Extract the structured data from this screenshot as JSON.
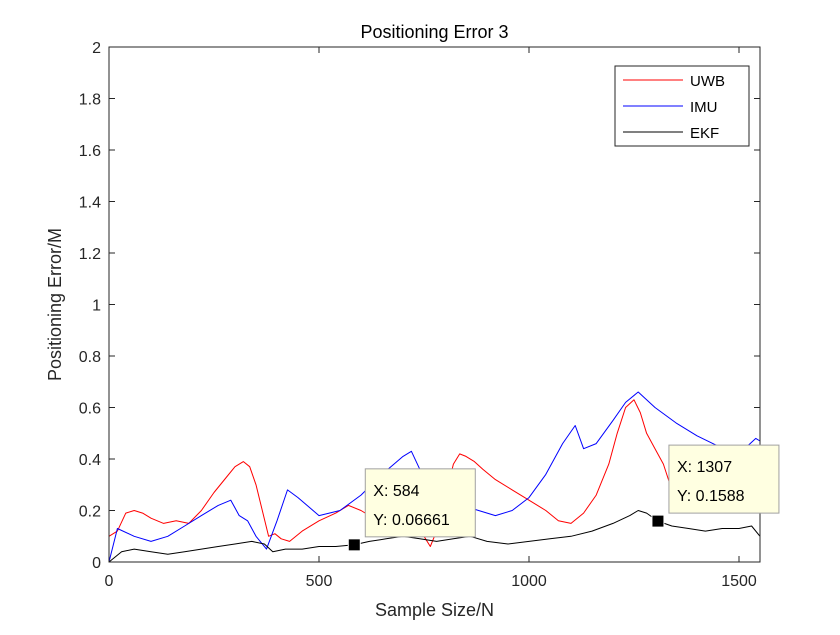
{
  "figure": {
    "background": "#ffffff"
  },
  "chart_data": {
    "type": "line",
    "title": "Positioning Error 3",
    "xlabel": "Sample Size/N",
    "ylabel": "Positioning Error/M",
    "xlim": [
      0,
      1550
    ],
    "ylim": [
      0,
      2
    ],
    "xticks": [
      0,
      500,
      1000,
      1500
    ],
    "xtick_labels": [
      "0",
      "500",
      "1000",
      "1500"
    ],
    "yticks": [
      0,
      0.2,
      0.4,
      0.6,
      0.8,
      1,
      1.2,
      1.4,
      1.6,
      1.8,
      2
    ],
    "ytick_labels": [
      "0",
      "0.2",
      "0.4",
      "0.6",
      "0.8",
      "1",
      "1.2",
      "1.4",
      "1.6",
      "1.8",
      "2"
    ],
    "grid": false,
    "legend": "top-right",
    "series": [
      {
        "name": "UWB",
        "color": "#ff0000",
        "x": [
          0,
          20,
          40,
          60,
          80,
          100,
          130,
          160,
          190,
          220,
          250,
          280,
          300,
          320,
          335,
          350,
          365,
          380,
          395,
          410,
          430,
          460,
          500,
          540,
          570,
          600,
          630,
          660,
          690,
          720,
          750,
          765,
          780,
          800,
          820,
          835,
          850,
          870,
          890,
          920,
          960,
          1000,
          1040,
          1070,
          1100,
          1130,
          1160,
          1190,
          1210,
          1230,
          1250,
          1265,
          1280,
          1300,
          1320,
          1340,
          1360,
          1380,
          1400,
          1420,
          1440,
          1460,
          1480,
          1500,
          1520,
          1540,
          1550
        ],
        "y": [
          0.1,
          0.12,
          0.19,
          0.2,
          0.19,
          0.17,
          0.15,
          0.16,
          0.15,
          0.2,
          0.27,
          0.33,
          0.37,
          0.39,
          0.37,
          0.3,
          0.2,
          0.1,
          0.11,
          0.09,
          0.08,
          0.12,
          0.16,
          0.19,
          0.22,
          0.2,
          0.17,
          0.14,
          0.12,
          0.11,
          0.1,
          0.06,
          0.12,
          0.25,
          0.38,
          0.42,
          0.41,
          0.39,
          0.36,
          0.32,
          0.28,
          0.24,
          0.2,
          0.16,
          0.15,
          0.19,
          0.26,
          0.38,
          0.5,
          0.6,
          0.63,
          0.58,
          0.5,
          0.44,
          0.38,
          0.28,
          0.35,
          0.3,
          0.37,
          0.33,
          0.3,
          0.32,
          0.31,
          0.37,
          0.41,
          0.37,
          0.2
        ]
      },
      {
        "name": "IMU",
        "color": "#0000ff",
        "x": [
          0,
          20,
          60,
          100,
          140,
          180,
          220,
          260,
          290,
          310,
          330,
          350,
          375,
          400,
          425,
          450,
          500,
          550,
          600,
          650,
          700,
          720,
          740,
          770,
          800,
          840,
          880,
          920,
          960,
          1000,
          1040,
          1080,
          1110,
          1130,
          1160,
          1200,
          1230,
          1260,
          1300,
          1350,
          1400,
          1450,
          1490,
          1520,
          1540,
          1550
        ],
        "y": [
          0.0,
          0.13,
          0.1,
          0.08,
          0.1,
          0.14,
          0.18,
          0.22,
          0.24,
          0.18,
          0.16,
          0.1,
          0.05,
          0.16,
          0.28,
          0.25,
          0.18,
          0.2,
          0.26,
          0.34,
          0.41,
          0.43,
          0.36,
          0.27,
          0.24,
          0.22,
          0.2,
          0.18,
          0.2,
          0.25,
          0.34,
          0.46,
          0.53,
          0.44,
          0.46,
          0.55,
          0.62,
          0.66,
          0.6,
          0.54,
          0.49,
          0.45,
          0.44,
          0.45,
          0.48,
          0.47
        ]
      },
      {
        "name": "EKF",
        "color": "#000000",
        "x": [
          0,
          30,
          60,
          100,
          140,
          180,
          220,
          260,
          300,
          340,
          370,
          390,
          420,
          460,
          500,
          540,
          584,
          620,
          660,
          700,
          740,
          780,
          820,
          860,
          900,
          950,
          1000,
          1050,
          1100,
          1150,
          1200,
          1240,
          1260,
          1280,
          1307,
          1340,
          1380,
          1420,
          1460,
          1500,
          1530,
          1550
        ],
        "y": [
          0.0,
          0.04,
          0.05,
          0.04,
          0.03,
          0.04,
          0.05,
          0.06,
          0.07,
          0.08,
          0.07,
          0.04,
          0.05,
          0.05,
          0.06,
          0.06,
          0.06661,
          0.08,
          0.09,
          0.1,
          0.09,
          0.08,
          0.09,
          0.1,
          0.08,
          0.07,
          0.08,
          0.09,
          0.1,
          0.12,
          0.15,
          0.18,
          0.2,
          0.19,
          0.1588,
          0.14,
          0.13,
          0.12,
          0.13,
          0.13,
          0.14,
          0.1
        ]
      }
    ],
    "datatips": [
      {
        "x": 584,
        "y": 0.06661,
        "xtext": "X: 584",
        "ytext": "Y: 0.06661"
      },
      {
        "x": 1307,
        "y": 0.1588,
        "xtext": "X: 1307",
        "ytext": "Y: 0.1588"
      }
    ]
  }
}
